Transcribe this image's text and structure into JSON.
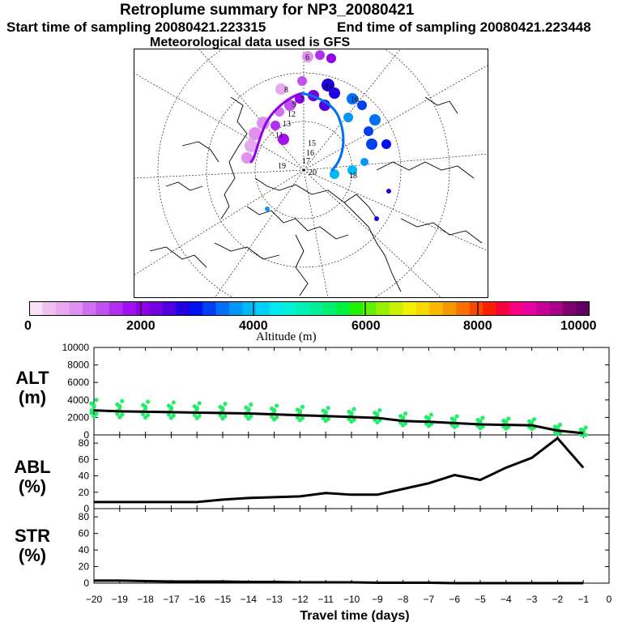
{
  "header": {
    "title": "Retroplume summary for NP3_20080421",
    "start": "Start time of sampling 20080421.223315",
    "end": "End time of sampling 20080421.223448",
    "met": "Meteorological data used is GFS"
  },
  "map_labels": [
    "6",
    "8",
    "9",
    "7",
    "12",
    "13",
    "14",
    "11",
    "10",
    "16",
    "15",
    "18",
    "17",
    "20",
    "19"
  ],
  "colorbar": {
    "label": "Altitude (m)",
    "ticks": [
      "0",
      "2000",
      "4000",
      "6000",
      "8000",
      "10000"
    ],
    "colors": [
      "#f8e0f8",
      "#f0c0f0",
      "#e8a8f0",
      "#e090f0",
      "#d070f0",
      "#c050f0",
      "#b030f0",
      "#a010f0",
      "#9000e8",
      "#7800e0",
      "#5000e0",
      "#2000e0",
      "#0010f0",
      "#0040f0",
      "#0070f8",
      "#0098f8",
      "#00b8f8",
      "#00d0f8",
      "#00e8f0",
      "#00f0d8",
      "#00f0b8",
      "#00f098",
      "#00f070",
      "#00f040",
      "#20f000",
      "#60f000",
      "#98f000",
      "#c8f000",
      "#f0f000",
      "#f8d800",
      "#f8b800",
      "#f89800",
      "#f87000",
      "#f84800",
      "#f82000",
      "#f80040",
      "#f80080",
      "#e800a0",
      "#c80098",
      "#a80088",
      "#800070",
      "#600060"
    ]
  },
  "chart_data": [
    {
      "type": "line",
      "ylabel": "ALT\n(m)",
      "ylabel_lines": [
        "ALT",
        "(m)"
      ],
      "ylim": [
        0,
        10000
      ],
      "yticks": [
        "0",
        "2000",
        "4000",
        "6000",
        "8000",
        "10000"
      ],
      "x": [
        -20,
        -19,
        -18,
        -17,
        -16,
        -15,
        -14,
        -13,
        -12,
        -11,
        -10,
        -9,
        -8,
        -7,
        -6,
        -5,
        -4,
        -3,
        -2,
        -1
      ],
      "values": [
        2800,
        2700,
        2650,
        2600,
        2550,
        2500,
        2450,
        2350,
        2250,
        2150,
        2050,
        1950,
        1600,
        1500,
        1350,
        1200,
        1150,
        1100,
        500,
        200
      ],
      "scatter_color": "#22ee66"
    },
    {
      "type": "line",
      "ylabel": "ABL\n(%)",
      "ylabel_lines": [
        "ABL",
        "(%)"
      ],
      "ylim": [
        0,
        90
      ],
      "yticks": [
        "0",
        "20",
        "40",
        "60",
        "80"
      ],
      "x": [
        -20,
        -19,
        -18,
        -17,
        -16,
        -15,
        -14,
        -13,
        -12,
        -11,
        -10,
        -9,
        -8,
        -7,
        -6,
        -5,
        -4,
        -3,
        -2,
        -1
      ],
      "values": [
        8,
        8,
        8,
        8,
        8,
        11,
        13,
        14,
        15,
        19,
        17,
        17,
        24,
        31,
        41,
        35,
        50,
        62,
        86,
        50
      ]
    },
    {
      "type": "line",
      "ylabel": "STR\n(%)",
      "ylabel_lines": [
        "STR",
        "(%)"
      ],
      "ylim": [
        0,
        90
      ],
      "yticks": [
        "0",
        "20",
        "40",
        "60",
        "80"
      ],
      "x": [
        -20,
        -19,
        -18,
        -17,
        -16,
        -15,
        -14,
        -13,
        -12,
        -11,
        -10,
        -9,
        -8,
        -7,
        -6,
        -5,
        -4,
        -3,
        -2,
        -1
      ],
      "values": [
        3,
        3,
        2.5,
        2,
        2,
        2,
        1.5,
        1.5,
        1,
        1,
        1,
        0.5,
        0.5,
        0.5,
        0,
        0,
        0,
        0,
        0,
        0
      ]
    }
  ],
  "xaxis": {
    "label": "Travel time (days)",
    "ticks": [
      "−20",
      "−19",
      "−18",
      "−17",
      "−16",
      "−15",
      "−14",
      "−13",
      "−12",
      "−11",
      "−10",
      "−9",
      "−8",
      "−7",
      "−6",
      "−5",
      "−4",
      "−3",
      "−2",
      "−1",
      "0"
    ],
    "xlim": [
      -20,
      0
    ]
  }
}
